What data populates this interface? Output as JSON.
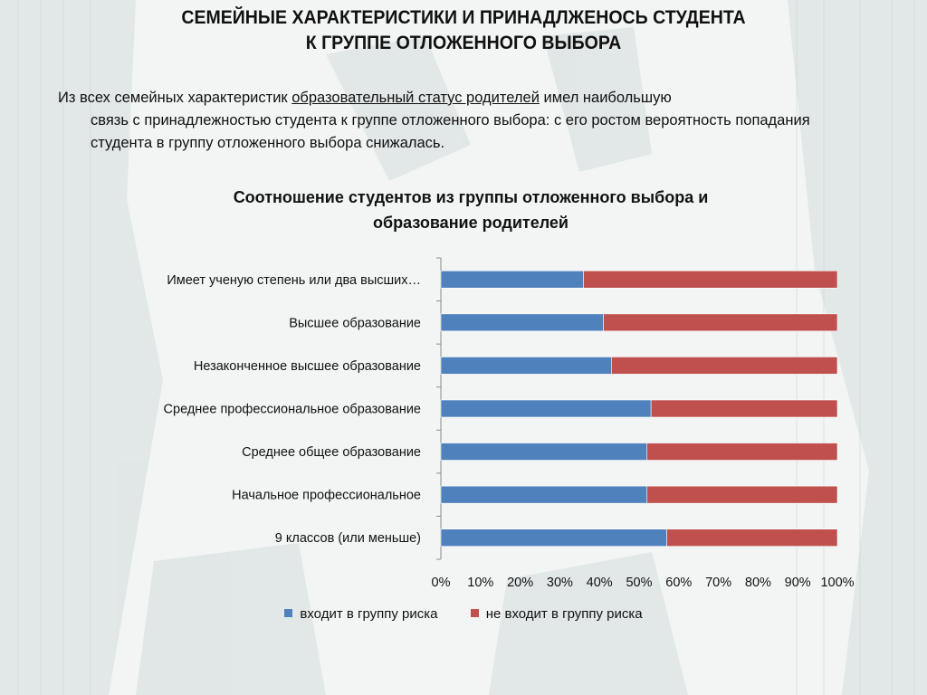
{
  "slide": {
    "title_line1": "СЕМЕЙНЫЕ ХАРАКТЕРИСТИКИ И ПРИНАДЛЖЕНОСЬ СТУДЕНТА",
    "title_line2": "К ГРУППЕ ОТЛОЖЕННОГО ВЫБОРА",
    "intro_before": "Из всех семейных характеристик ",
    "intro_underlined": "образовательный статус родителей",
    "intro_after_line1": " имел наибольшую",
    "intro_rest": "связь с принадлежностью студента к группе отложенного выбора: с его ростом вероятность попадания студента в группу отложенного выбора снижалась."
  },
  "chart_data": {
    "type": "bar",
    "orientation": "horizontal",
    "stacked": "percent",
    "title_line1": "Соотношение студентов из группы отложенного выбора и",
    "title_line2": "образование родителей",
    "categories": [
      "Имеет ученую степень или два высших…",
      "Высшее образование",
      "Незаконченное высшее образование",
      "Среднее профессиональное образование",
      "Среднее общее образование",
      "Начальное профессиональное",
      "9 классов (или меньше)"
    ],
    "series": [
      {
        "name": "входит в группу риска",
        "color": "#4f81bd",
        "values": [
          36,
          41,
          43,
          53,
          52,
          52,
          57
        ]
      },
      {
        "name": "не входит в группу риска",
        "color": "#c0504d",
        "values": [
          64,
          59,
          57,
          47,
          48,
          48,
          43
        ]
      }
    ],
    "xlim": [
      0,
      100
    ],
    "x_ticks": [
      "0%",
      "10%",
      "20%",
      "30%",
      "40%",
      "50%",
      "60%",
      "70%",
      "80%",
      "90%",
      "100%"
    ],
    "legend_position": "bottom",
    "grid": false
  }
}
